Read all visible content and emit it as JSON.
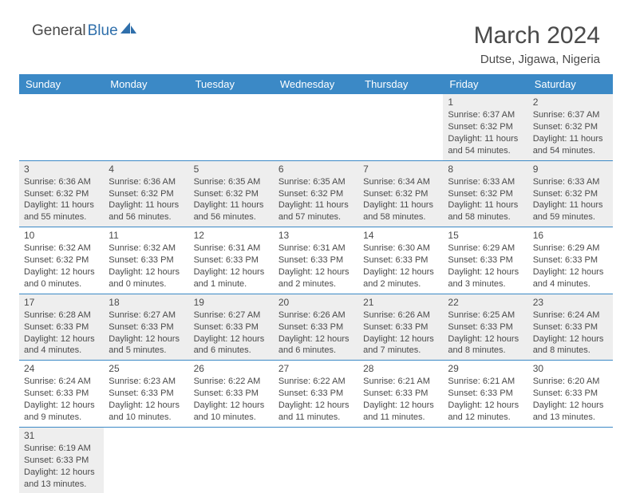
{
  "brand": {
    "text_dark": "General",
    "text_blue": "Blue"
  },
  "title": "March 2024",
  "location": "Dutse, Jigawa, Nigeria",
  "colors": {
    "header_bg": "#3b89c6",
    "header_text": "#ffffff",
    "row_alt_bg": "#eeeeee",
    "row_bg": "#ffffff",
    "text": "#4a4a4a",
    "row_border": "#3b89c6",
    "logo_blue": "#2f6fab"
  },
  "day_headers": [
    "Sunday",
    "Monday",
    "Tuesday",
    "Wednesday",
    "Thursday",
    "Friday",
    "Saturday"
  ],
  "weeks": [
    [
      null,
      null,
      null,
      null,
      null,
      {
        "n": "1",
        "sunrise": "6:37 AM",
        "sunset": "6:32 PM",
        "daylight": "11 hours and 54 minutes."
      },
      {
        "n": "2",
        "sunrise": "6:37 AM",
        "sunset": "6:32 PM",
        "daylight": "11 hours and 54 minutes."
      }
    ],
    [
      {
        "n": "3",
        "sunrise": "6:36 AM",
        "sunset": "6:32 PM",
        "daylight": "11 hours and 55 minutes."
      },
      {
        "n": "4",
        "sunrise": "6:36 AM",
        "sunset": "6:32 PM",
        "daylight": "11 hours and 56 minutes."
      },
      {
        "n": "5",
        "sunrise": "6:35 AM",
        "sunset": "6:32 PM",
        "daylight": "11 hours and 56 minutes."
      },
      {
        "n": "6",
        "sunrise": "6:35 AM",
        "sunset": "6:32 PM",
        "daylight": "11 hours and 57 minutes."
      },
      {
        "n": "7",
        "sunrise": "6:34 AM",
        "sunset": "6:32 PM",
        "daylight": "11 hours and 58 minutes."
      },
      {
        "n": "8",
        "sunrise": "6:33 AM",
        "sunset": "6:32 PM",
        "daylight": "11 hours and 58 minutes."
      },
      {
        "n": "9",
        "sunrise": "6:33 AM",
        "sunset": "6:32 PM",
        "daylight": "11 hours and 59 minutes."
      }
    ],
    [
      {
        "n": "10",
        "sunrise": "6:32 AM",
        "sunset": "6:32 PM",
        "daylight": "12 hours and 0 minutes."
      },
      {
        "n": "11",
        "sunrise": "6:32 AM",
        "sunset": "6:33 PM",
        "daylight": "12 hours and 0 minutes."
      },
      {
        "n": "12",
        "sunrise": "6:31 AM",
        "sunset": "6:33 PM",
        "daylight": "12 hours and 1 minute."
      },
      {
        "n": "13",
        "sunrise": "6:31 AM",
        "sunset": "6:33 PM",
        "daylight": "12 hours and 2 minutes."
      },
      {
        "n": "14",
        "sunrise": "6:30 AM",
        "sunset": "6:33 PM",
        "daylight": "12 hours and 2 minutes."
      },
      {
        "n": "15",
        "sunrise": "6:29 AM",
        "sunset": "6:33 PM",
        "daylight": "12 hours and 3 minutes."
      },
      {
        "n": "16",
        "sunrise": "6:29 AM",
        "sunset": "6:33 PM",
        "daylight": "12 hours and 4 minutes."
      }
    ],
    [
      {
        "n": "17",
        "sunrise": "6:28 AM",
        "sunset": "6:33 PM",
        "daylight": "12 hours and 4 minutes."
      },
      {
        "n": "18",
        "sunrise": "6:27 AM",
        "sunset": "6:33 PM",
        "daylight": "12 hours and 5 minutes."
      },
      {
        "n": "19",
        "sunrise": "6:27 AM",
        "sunset": "6:33 PM",
        "daylight": "12 hours and 6 minutes."
      },
      {
        "n": "20",
        "sunrise": "6:26 AM",
        "sunset": "6:33 PM",
        "daylight": "12 hours and 6 minutes."
      },
      {
        "n": "21",
        "sunrise": "6:26 AM",
        "sunset": "6:33 PM",
        "daylight": "12 hours and 7 minutes."
      },
      {
        "n": "22",
        "sunrise": "6:25 AM",
        "sunset": "6:33 PM",
        "daylight": "12 hours and 8 minutes."
      },
      {
        "n": "23",
        "sunrise": "6:24 AM",
        "sunset": "6:33 PM",
        "daylight": "12 hours and 8 minutes."
      }
    ],
    [
      {
        "n": "24",
        "sunrise": "6:24 AM",
        "sunset": "6:33 PM",
        "daylight": "12 hours and 9 minutes."
      },
      {
        "n": "25",
        "sunrise": "6:23 AM",
        "sunset": "6:33 PM",
        "daylight": "12 hours and 10 minutes."
      },
      {
        "n": "26",
        "sunrise": "6:22 AM",
        "sunset": "6:33 PM",
        "daylight": "12 hours and 10 minutes."
      },
      {
        "n": "27",
        "sunrise": "6:22 AM",
        "sunset": "6:33 PM",
        "daylight": "12 hours and 11 minutes."
      },
      {
        "n": "28",
        "sunrise": "6:21 AM",
        "sunset": "6:33 PM",
        "daylight": "12 hours and 11 minutes."
      },
      {
        "n": "29",
        "sunrise": "6:21 AM",
        "sunset": "6:33 PM",
        "daylight": "12 hours and 12 minutes."
      },
      {
        "n": "30",
        "sunrise": "6:20 AM",
        "sunset": "6:33 PM",
        "daylight": "12 hours and 13 minutes."
      }
    ],
    [
      {
        "n": "31",
        "sunrise": "6:19 AM",
        "sunset": "6:33 PM",
        "daylight": "12 hours and 13 minutes."
      },
      null,
      null,
      null,
      null,
      null,
      null
    ]
  ],
  "labels": {
    "sunrise": "Sunrise: ",
    "sunset": "Sunset: ",
    "daylight": "Daylight: "
  }
}
